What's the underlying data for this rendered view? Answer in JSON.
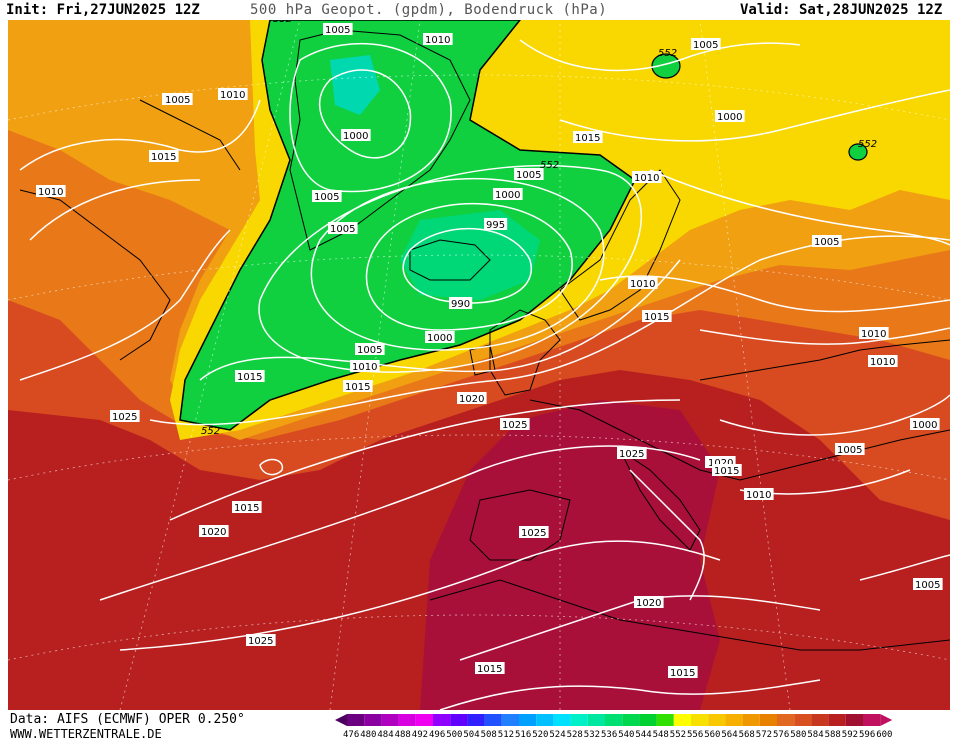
{
  "header": {
    "init": "Init: Fri,27JUN2025 12Z",
    "title": "500 hPa Geopot. (gpdm), Bodendruck (hPa)",
    "valid": "Valid: Sat,28JUN2025 12Z"
  },
  "footer": {
    "data_source": "Data: AIFS (ECMWF) OPER 0.250°",
    "website": "WWW.WETTERZENTRALE.DE"
  },
  "legend": {
    "values": [
      "476",
      "480",
      "484",
      "488",
      "492",
      "496",
      "500",
      "504",
      "508",
      "512",
      "516",
      "520",
      "524",
      "528",
      "532",
      "536",
      "540",
      "544",
      "548",
      "552",
      "556",
      "560",
      "564",
      "568",
      "572",
      "576",
      "580",
      "584",
      "588",
      "592",
      "596",
      "600"
    ],
    "colors": [
      "#4b0060",
      "#6a0080",
      "#8a00a0",
      "#b000c0",
      "#d800e0",
      "#f000f0",
      "#9000ff",
      "#6000ff",
      "#3020ff",
      "#2050ff",
      "#2080ff",
      "#00a0ff",
      "#00c0ff",
      "#00e0ff",
      "#00f0c8",
      "#00e8a0",
      "#00e070",
      "#00d850",
      "#00d030",
      "#30e000",
      "#ffff00",
      "#f8e000",
      "#f8c800",
      "#f8b000",
      "#f09800",
      "#e88000",
      "#e06820",
      "#d85020",
      "#c83820",
      "#b82020",
      "#a01030",
      "#c01060"
    ]
  },
  "map": {
    "isobar_labels": [
      {
        "text": "1005"
      },
      {
        "text": "1010"
      },
      {
        "text": "1010"
      },
      {
        "text": "1005"
      },
      {
        "text": "1015"
      },
      {
        "text": "1010"
      },
      {
        "text": "1000"
      },
      {
        "text": "1005"
      },
      {
        "text": "1005"
      },
      {
        "text": "1005"
      },
      {
        "text": "1000"
      },
      {
        "text": "995"
      },
      {
        "text": "990"
      },
      {
        "text": "1000"
      },
      {
        "text": "1005"
      },
      {
        "text": "1010"
      },
      {
        "text": "1015"
      },
      {
        "text": "1015"
      },
      {
        "text": "1025"
      },
      {
        "text": "1020"
      },
      {
        "text": "1025"
      },
      {
        "text": "1015"
      },
      {
        "text": "1020"
      },
      {
        "text": "1025"
      },
      {
        "text": "1025"
      },
      {
        "text": "1020"
      },
      {
        "text": "1015"
      },
      {
        "text": "1015"
      },
      {
        "text": "1020"
      },
      {
        "text": "1015"
      },
      {
        "text": "1005"
      },
      {
        "text": "1005"
      },
      {
        "text": "1000"
      },
      {
        "text": "1015"
      },
      {
        "text": "1010"
      },
      {
        "text": "1005"
      },
      {
        "text": "1010"
      },
      {
        "text": "1015"
      },
      {
        "text": "1010"
      },
      {
        "text": "1010"
      },
      {
        "text": "1000"
      },
      {
        "text": "1005"
      },
      {
        "text": "1020"
      },
      {
        "text": "1015"
      },
      {
        "text": "1010"
      },
      {
        "text": "1005"
      },
      {
        "text": "1025"
      }
    ],
    "geopot_labels": [
      {
        "text": "552"
      },
      {
        "text": "552"
      },
      {
        "text": "552"
      },
      {
        "text": "552"
      },
      {
        "text": "552"
      }
    ]
  }
}
